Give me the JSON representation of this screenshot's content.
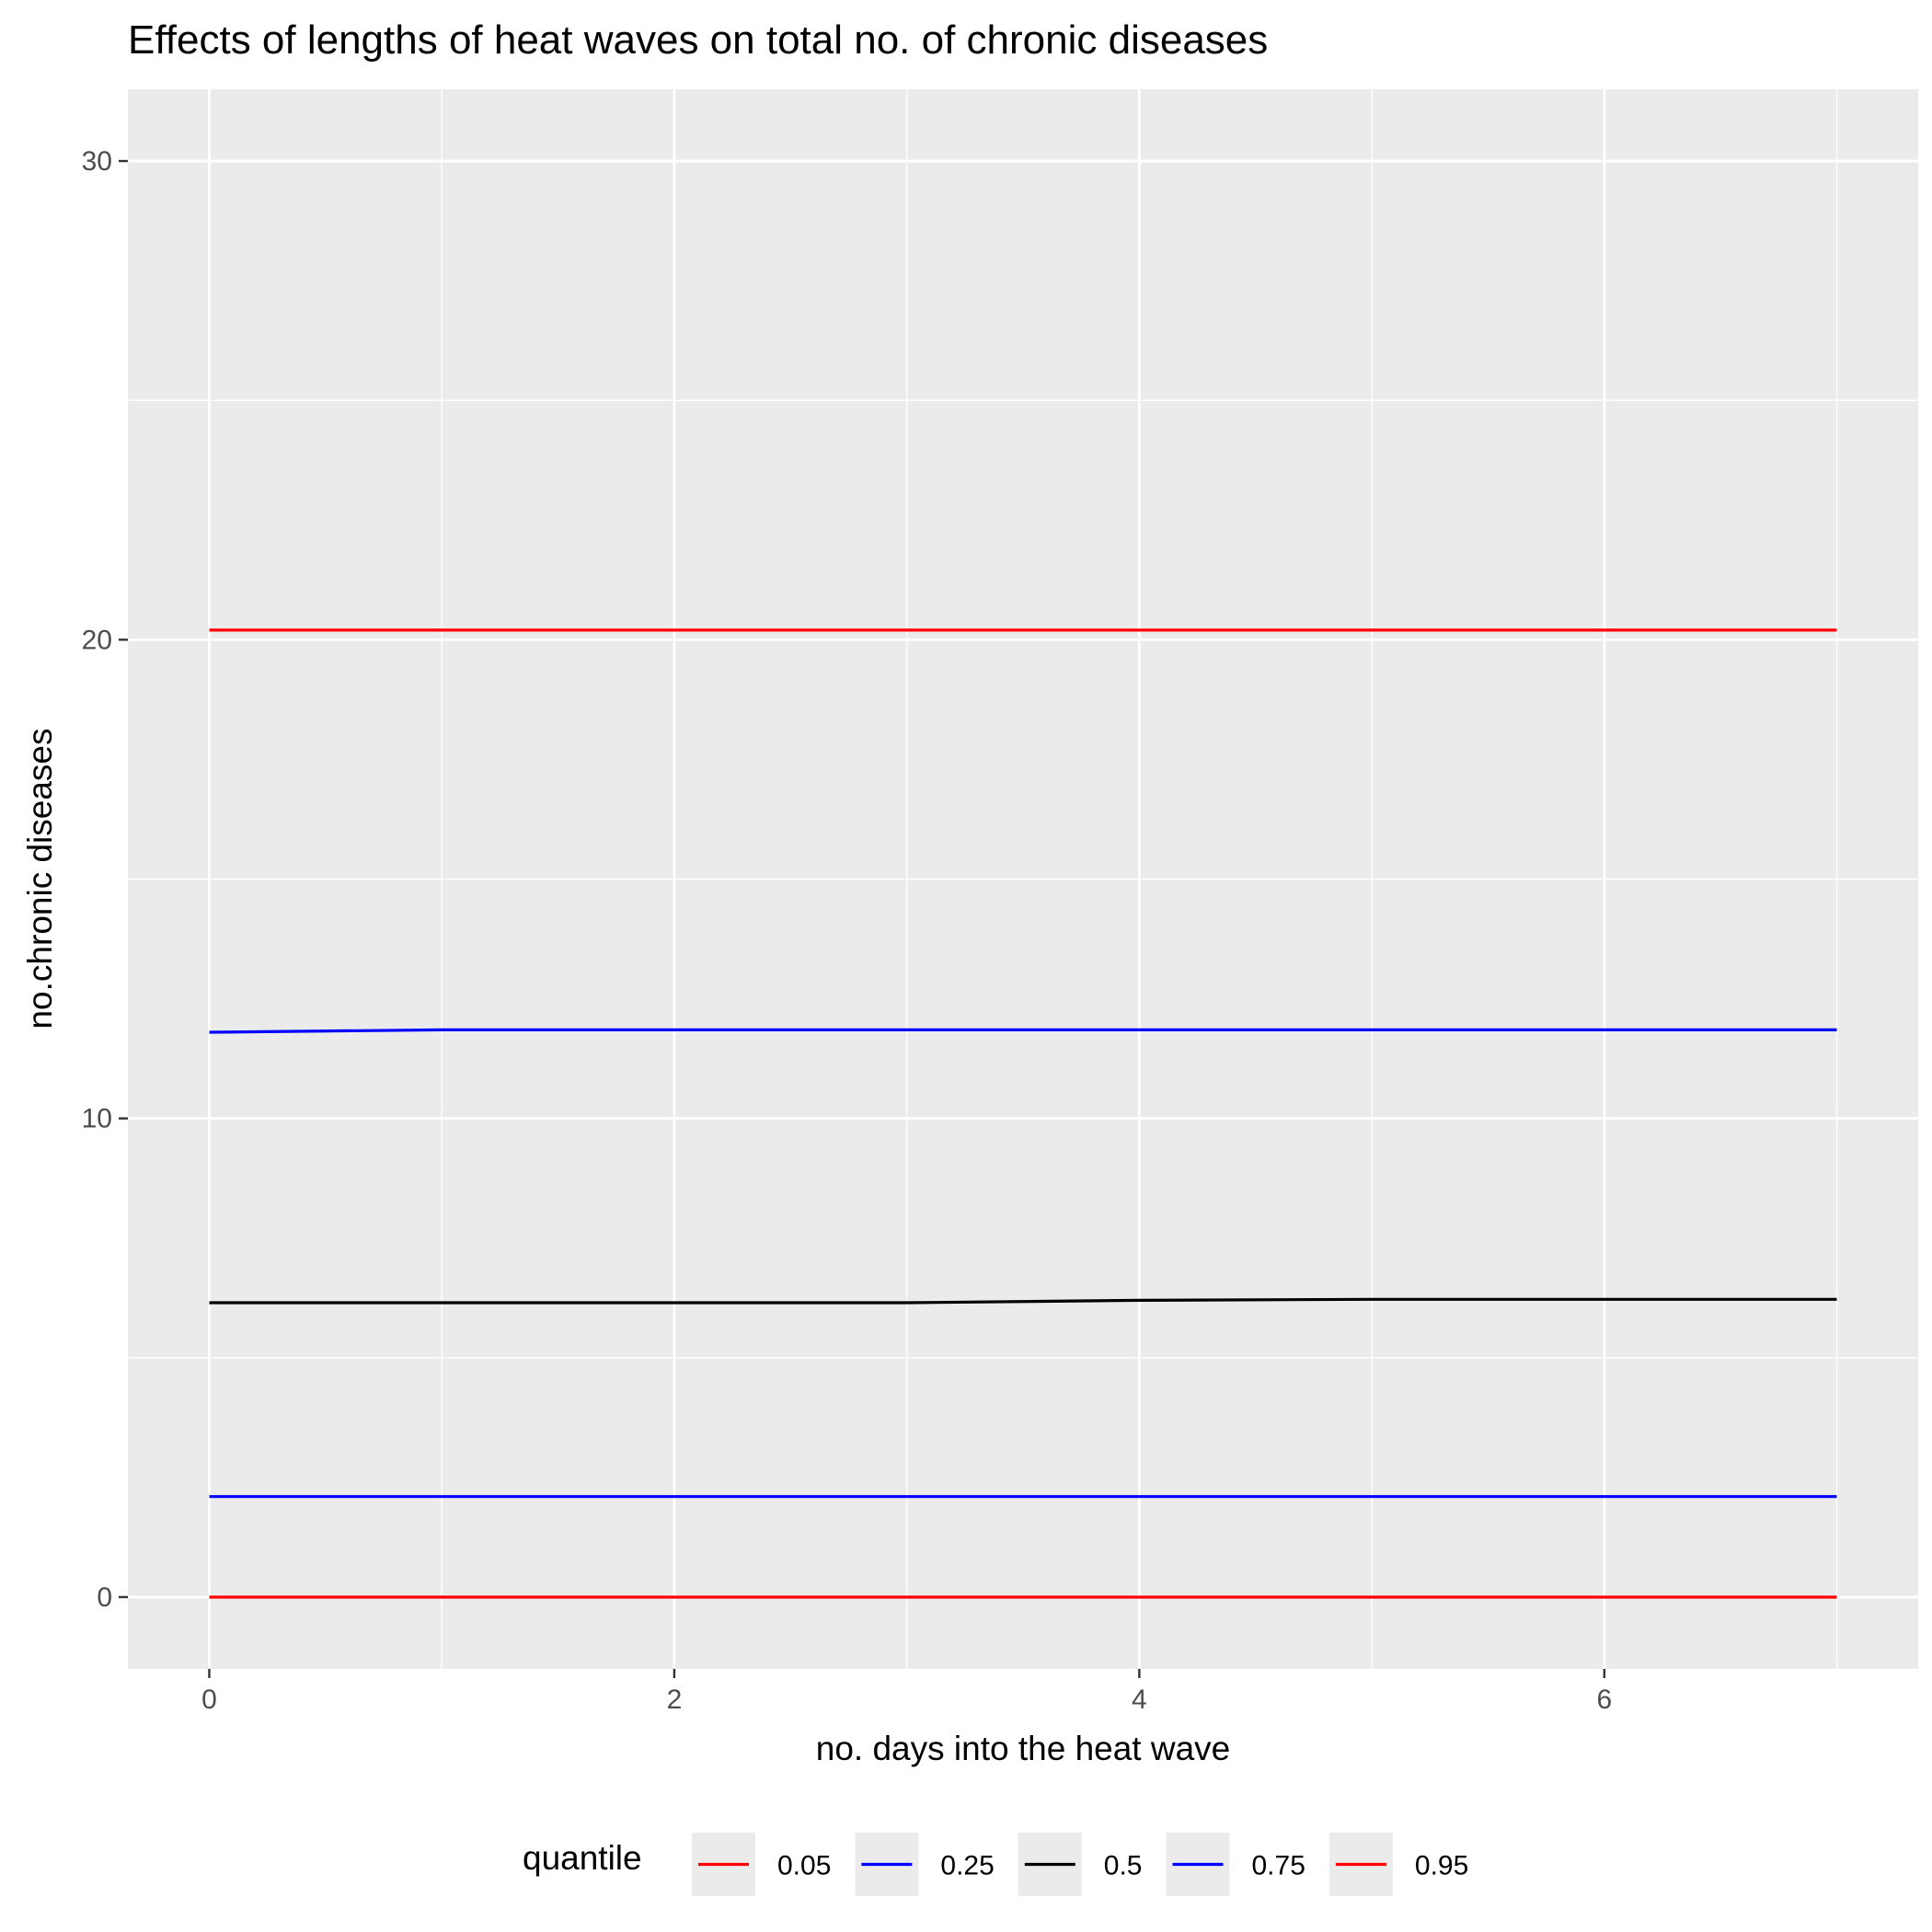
{
  "chart_data": {
    "type": "line",
    "title": "Effects of lengths of heat waves on total no. of chronic diseases",
    "xlabel": "no. days into the heat wave",
    "ylabel": "no.chronic diseases",
    "x": [
      0,
      1,
      2,
      3,
      4,
      5,
      6,
      7
    ],
    "xlim": [
      -0.35,
      7.35
    ],
    "ylim": [
      -1.5,
      31.5
    ],
    "x_ticks": [
      0,
      2,
      4,
      6
    ],
    "y_ticks": [
      0,
      10,
      20,
      30
    ],
    "x_tick_labels": [
      "0",
      "2",
      "4",
      "6"
    ],
    "y_tick_labels": [
      "0",
      "10",
      "20",
      "30"
    ],
    "grid": true,
    "legend": {
      "title": "quantile",
      "position": "bottom"
    },
    "series": [
      {
        "name": "0.05",
        "color": "#ff0000",
        "values": [
          0,
          0,
          0,
          0,
          0,
          0,
          0,
          0
        ]
      },
      {
        "name": "0.25",
        "color": "#0000ff",
        "values": [
          2.1,
          2.1,
          2.1,
          2.1,
          2.1,
          2.1,
          2.1,
          2.1
        ]
      },
      {
        "name": "0.5",
        "color": "#000000",
        "values": [
          6.15,
          6.15,
          6.15,
          6.15,
          6.2,
          6.22,
          6.22,
          6.22
        ]
      },
      {
        "name": "0.75",
        "color": "#0000ff",
        "values": [
          11.8,
          11.85,
          11.85,
          11.85,
          11.85,
          11.85,
          11.85,
          11.85
        ]
      },
      {
        "name": "0.95",
        "color": "#ff0000",
        "values": [
          20.2,
          20.2,
          20.2,
          20.2,
          20.2,
          20.2,
          20.2,
          20.2
        ]
      }
    ]
  }
}
